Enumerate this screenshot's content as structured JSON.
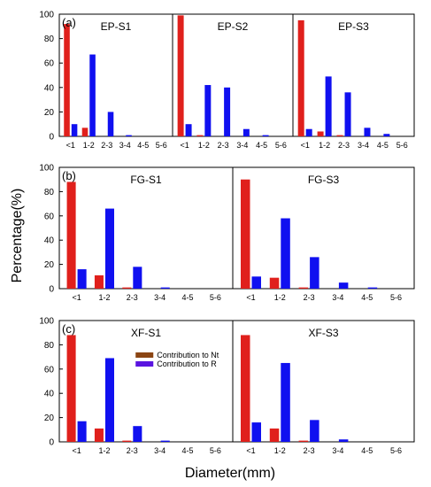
{
  "figure": {
    "ylabel": "Percentage(%)",
    "xlabel": "Diameter(mm)"
  },
  "colors": {
    "nt": "#e0201c",
    "r": "#1010f0",
    "nt_legend": "#8b4513",
    "r_legend": "#5a14e0"
  },
  "chart_data": [
    {
      "type": "bar",
      "panel_letter": "(a)",
      "title": "EP-S1",
      "categories": [
        "<1",
        "1-2",
        "2-3",
        "3-4",
        "4-5",
        "5-6"
      ],
      "ylim": [
        0,
        100
      ],
      "yticks": [
        0,
        20,
        40,
        60,
        80,
        100
      ],
      "show_yticks": true,
      "series": [
        {
          "name": "Contribution to Nt",
          "values": [
            92,
            7,
            0,
            0,
            0,
            0
          ]
        },
        {
          "name": "Contribution to R",
          "values": [
            10,
            67,
            20,
            1,
            0,
            0
          ]
        }
      ]
    },
    {
      "type": "bar",
      "panel_letter": "",
      "title": "EP-S2",
      "categories": [
        "<1",
        "1-2",
        "2-3",
        "3-4",
        "4-5",
        "5-6"
      ],
      "ylim": [
        0,
        100
      ],
      "show_yticks": false,
      "series": [
        {
          "name": "Contribution to Nt",
          "values": [
            99,
            1,
            0,
            0,
            0,
            0
          ]
        },
        {
          "name": "Contribution to R",
          "values": [
            10,
            42,
            40,
            6,
            1,
            0
          ]
        }
      ]
    },
    {
      "type": "bar",
      "panel_letter": "",
      "title": "EP-S3",
      "categories": [
        "<1",
        "1-2",
        "2-3",
        "3-4",
        "4-5",
        "5-6"
      ],
      "ylim": [
        0,
        100
      ],
      "show_yticks": false,
      "series": [
        {
          "name": "Contribution to Nt",
          "values": [
            95,
            4,
            1,
            0,
            0,
            0
          ]
        },
        {
          "name": "Contribution to R",
          "values": [
            6,
            49,
            36,
            7,
            2,
            0
          ]
        }
      ]
    },
    {
      "type": "bar",
      "panel_letter": "(b)",
      "title": "FG-S1",
      "categories": [
        "<1",
        "1-2",
        "2-3",
        "3-4",
        "4-5",
        "5-6"
      ],
      "ylim": [
        0,
        100
      ],
      "yticks": [
        0,
        20,
        40,
        60,
        80,
        100
      ],
      "show_yticks": true,
      "series": [
        {
          "name": "Contribution to Nt",
          "values": [
            88,
            11,
            1,
            0,
            0,
            0
          ]
        },
        {
          "name": "Contribution to R",
          "values": [
            16,
            66,
            18,
            1,
            0,
            0
          ]
        }
      ]
    },
    {
      "type": "bar",
      "panel_letter": "",
      "title": "FG-S3",
      "categories": [
        "<1",
        "1-2",
        "2-3",
        "3-4",
        "4-5",
        "5-6"
      ],
      "ylim": [
        0,
        100
      ],
      "show_yticks": false,
      "series": [
        {
          "name": "Contribution to Nt",
          "values": [
            90,
            9,
            1,
            0,
            0,
            0
          ]
        },
        {
          "name": "Contribution to R",
          "values": [
            10,
            58,
            26,
            5,
            1,
            0
          ]
        }
      ]
    },
    {
      "type": "bar",
      "panel_letter": "(c)",
      "title": "XF-S1",
      "categories": [
        "<1",
        "1-2",
        "2-3",
        "3-4",
        "4-5",
        "5-6"
      ],
      "ylim": [
        0,
        100
      ],
      "yticks": [
        0,
        20,
        40,
        60,
        80,
        100
      ],
      "show_yticks": true,
      "series": [
        {
          "name": "Contribution to Nt",
          "values": [
            88,
            11,
            1,
            0,
            0,
            0
          ]
        },
        {
          "name": "Contribution to R",
          "values": [
            17,
            69,
            13,
            1,
            0,
            0
          ]
        }
      ],
      "legend": [
        "Contribution to Nt",
        "Contribution to R"
      ]
    },
    {
      "type": "bar",
      "panel_letter": "",
      "title": "XF-S3",
      "categories": [
        "<1",
        "1-2",
        "2-3",
        "3-4",
        "4-5",
        "5-6"
      ],
      "ylim": [
        0,
        100
      ],
      "show_yticks": false,
      "series": [
        {
          "name": "Contribution to Nt",
          "values": [
            88,
            11,
            1,
            0,
            0,
            0
          ]
        },
        {
          "name": "Contribution to R",
          "values": [
            16,
            65,
            18,
            2,
            0,
            0
          ]
        }
      ]
    }
  ]
}
